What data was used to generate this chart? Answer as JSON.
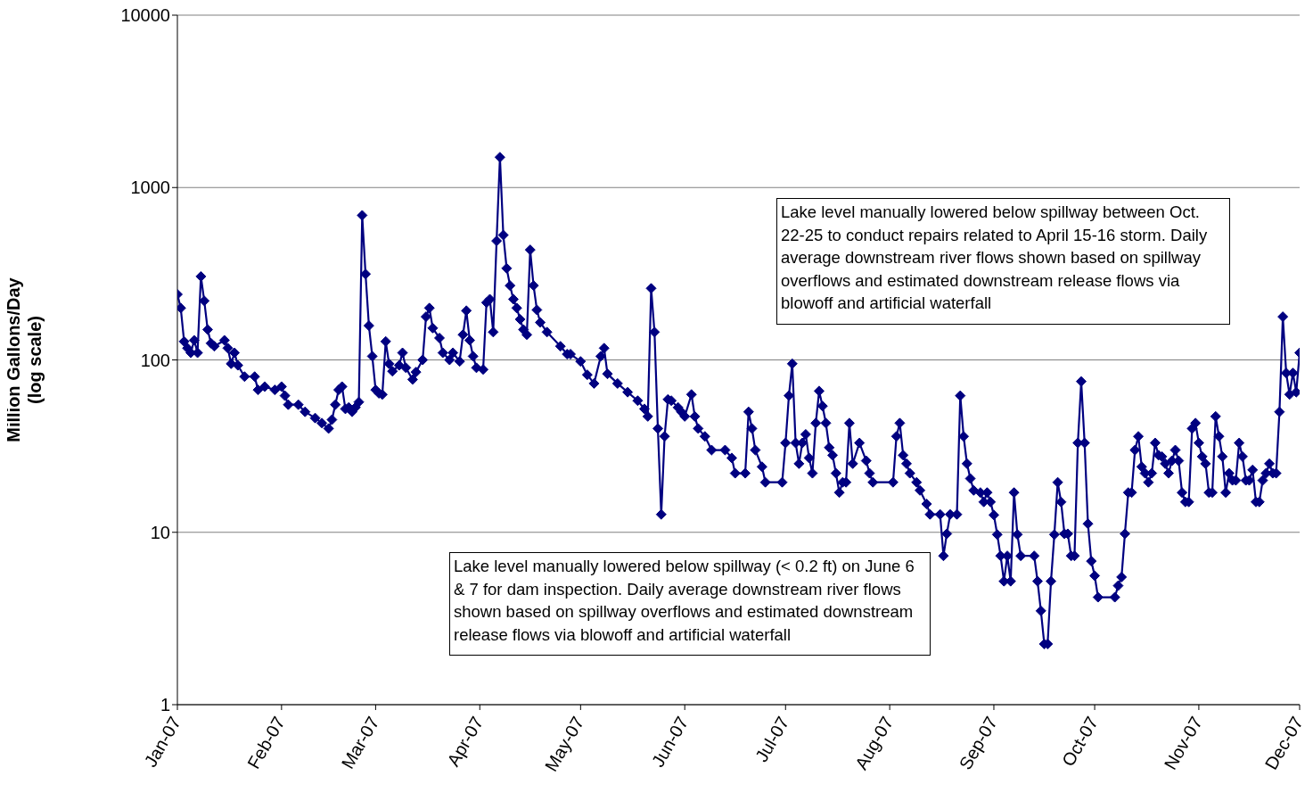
{
  "chart_data": {
    "type": "line",
    "ylabel": "Million Gallons/Day\n(log scale)",
    "log": true,
    "grid": "y",
    "marker": "diamond",
    "line_style": "solid",
    "xlim": [
      "2007-01-01",
      "2007-12-01"
    ],
    "xticks": [
      {
        "value": "2007-01-01",
        "label": "Jan-07"
      },
      {
        "value": "2007-02-01",
        "label": "Feb-07"
      },
      {
        "value": "2007-03-01",
        "label": "Mar-07"
      },
      {
        "value": "2007-04-01",
        "label": "Apr-07"
      },
      {
        "value": "2007-05-01",
        "label": "May-07"
      },
      {
        "value": "2007-06-01",
        "label": "Jun-07"
      },
      {
        "value": "2007-07-01",
        "label": "Jul-07"
      },
      {
        "value": "2007-08-01",
        "label": "Aug-07"
      },
      {
        "value": "2007-09-01",
        "label": "Sep-07"
      },
      {
        "value": "2007-10-01",
        "label": "Oct-07"
      },
      {
        "value": "2007-11-01",
        "label": "Nov-07"
      },
      {
        "value": "2007-12-01",
        "label": "Dec-07"
      }
    ],
    "ylim": [
      1,
      10000
    ],
    "yticks": [
      1,
      10,
      100,
      1000,
      10000
    ],
    "annotations": [
      "Lake level manually lowered below spillway between Oct. 22-25 to conduct repairs related to April 15-16 storm.  Daily average downstream river flows shown based on spillway overflows and estimated downstream release flows via blowoff and artificial waterfall",
      "Lake level manually lowered below spillway (< 0.2 ft) on June 6 & 7 for dam inspection.  Daily average downstream river flows shown based on spillway overflows and estimated downstream release flows via blowoff and artificial waterfall"
    ],
    "series": [
      {
        "color": "#000080",
        "x": [
          "2007-01-01",
          "2007-01-02",
          "2007-01-03",
          "2007-01-04",
          "2007-01-05",
          "2007-01-06",
          "2007-01-07",
          "2007-01-08",
          "2007-01-09",
          "2007-01-10",
          "2007-01-11",
          "2007-01-12",
          "2007-01-15",
          "2007-01-16",
          "2007-01-17",
          "2007-01-18",
          "2007-01-19",
          "2007-01-21",
          "2007-01-24",
          "2007-01-25",
          "2007-01-27",
          "2007-01-30",
          "2007-02-01",
          "2007-02-02",
          "2007-02-03",
          "2007-02-06",
          "2007-02-08",
          "2007-02-11",
          "2007-02-13",
          "2007-02-15",
          "2007-02-16",
          "2007-02-17",
          "2007-02-18",
          "2007-02-19",
          "2007-02-20",
          "2007-02-21",
          "2007-02-22",
          "2007-02-23",
          "2007-02-24",
          "2007-02-25",
          "2007-02-26",
          "2007-02-27",
          "2007-02-28",
          "2007-03-01",
          "2007-03-02",
          "2007-03-03",
          "2007-03-04",
          "2007-03-05",
          "2007-03-06",
          "2007-03-08",
          "2007-03-09",
          "2007-03-10",
          "2007-03-12",
          "2007-03-13",
          "2007-03-15",
          "2007-03-16",
          "2007-03-17",
          "2007-03-18",
          "2007-03-20",
          "2007-03-21",
          "2007-03-23",
          "2007-03-24",
          "2007-03-26",
          "2007-03-27",
          "2007-03-28",
          "2007-03-29",
          "2007-03-30",
          "2007-03-31",
          "2007-04-02",
          "2007-04-03",
          "2007-04-04",
          "2007-04-05",
          "2007-04-06",
          "2007-04-07",
          "2007-04-08",
          "2007-04-09",
          "2007-04-10",
          "2007-04-11",
          "2007-04-12",
          "2007-04-13",
          "2007-04-14",
          "2007-04-15",
          "2007-04-16",
          "2007-04-17",
          "2007-04-18",
          "2007-04-19",
          "2007-04-21",
          "2007-04-25",
          "2007-04-27",
          "2007-04-28",
          "2007-05-01",
          "2007-05-03",
          "2007-05-05",
          "2007-05-07",
          "2007-05-08",
          "2007-05-09",
          "2007-05-12",
          "2007-05-15",
          "2007-05-18",
          "2007-05-20",
          "2007-05-21",
          "2007-05-22",
          "2007-05-23",
          "2007-05-24",
          "2007-05-25",
          "2007-05-26",
          "2007-05-27",
          "2007-05-28",
          "2007-05-30",
          "2007-05-31",
          "2007-06-01",
          "2007-06-03",
          "2007-06-04",
          "2007-06-05",
          "2007-06-07",
          "2007-06-09",
          "2007-06-13",
          "2007-06-15",
          "2007-06-16",
          "2007-06-19",
          "2007-06-20",
          "2007-06-21",
          "2007-06-22",
          "2007-06-24",
          "2007-06-25",
          "2007-06-30",
          "2007-07-01",
          "2007-07-02",
          "2007-07-03",
          "2007-07-04",
          "2007-07-05",
          "2007-07-06",
          "2007-07-07",
          "2007-07-08",
          "2007-07-09",
          "2007-07-10",
          "2007-07-11",
          "2007-07-12",
          "2007-07-13",
          "2007-07-14",
          "2007-07-15",
          "2007-07-16",
          "2007-07-17",
          "2007-07-18",
          "2007-07-19",
          "2007-07-20",
          "2007-07-21",
          "2007-07-23",
          "2007-07-25",
          "2007-07-26",
          "2007-07-27",
          "2007-08-02",
          "2007-08-03",
          "2007-08-04",
          "2007-08-05",
          "2007-08-06",
          "2007-08-07",
          "2007-08-09",
          "2007-08-10",
          "2007-08-12",
          "2007-08-13",
          "2007-08-16",
          "2007-08-17",
          "2007-08-18",
          "2007-08-19",
          "2007-08-21",
          "2007-08-22",
          "2007-08-23",
          "2007-08-24",
          "2007-08-25",
          "2007-08-26",
          "2007-08-28",
          "2007-08-29",
          "2007-08-30",
          "2007-08-31",
          "2007-09-01",
          "2007-09-02",
          "2007-09-03",
          "2007-09-04",
          "2007-09-05",
          "2007-09-06",
          "2007-09-07",
          "2007-09-08",
          "2007-09-09",
          "2007-09-13",
          "2007-09-14",
          "2007-09-15",
          "2007-09-16",
          "2007-09-17",
          "2007-09-18",
          "2007-09-19",
          "2007-09-20",
          "2007-09-21",
          "2007-09-22",
          "2007-09-23",
          "2007-09-24",
          "2007-09-25",
          "2007-09-26",
          "2007-09-27",
          "2007-09-28",
          "2007-09-29",
          "2007-09-30",
          "2007-10-01",
          "2007-10-02",
          "2007-10-07",
          "2007-10-08",
          "2007-10-09",
          "2007-10-10",
          "2007-10-11",
          "2007-10-12",
          "2007-10-13",
          "2007-10-14",
          "2007-10-15",
          "2007-10-16",
          "2007-10-17",
          "2007-10-18",
          "2007-10-19",
          "2007-10-20",
          "2007-10-21",
          "2007-10-22",
          "2007-10-23",
          "2007-10-24",
          "2007-10-25",
          "2007-10-26",
          "2007-10-27",
          "2007-10-28",
          "2007-10-29",
          "2007-10-30",
          "2007-10-31",
          "2007-11-01",
          "2007-11-02",
          "2007-11-03",
          "2007-11-04",
          "2007-11-05",
          "2007-11-06",
          "2007-11-07",
          "2007-11-08",
          "2007-11-09",
          "2007-11-10",
          "2007-11-11",
          "2007-11-12",
          "2007-11-13",
          "2007-11-14",
          "2007-11-15",
          "2007-11-16",
          "2007-11-17",
          "2007-11-18",
          "2007-11-19",
          "2007-11-20",
          "2007-11-21",
          "2007-11-22",
          "2007-11-23",
          "2007-11-24",
          "2007-11-25",
          "2007-11-26",
          "2007-11-27",
          "2007-11-28",
          "2007-11-29",
          "2007-11-30",
          "2007-12-01"
        ],
        "values": [
          240,
          200,
          128,
          117,
          110,
          130,
          110,
          305,
          220,
          150,
          125,
          120,
          130,
          117,
          95,
          110,
          93,
          80,
          80,
          67,
          70,
          67,
          70,
          62,
          55,
          55,
          50,
          46,
          43,
          40,
          45,
          55,
          67,
          70,
          52,
          53,
          50,
          53,
          57,
          690,
          315,
          158,
          105,
          67,
          64,
          63,
          128,
          95,
          86,
          93,
          110,
          90,
          77,
          85,
          100,
          178,
          200,
          153,
          134,
          110,
          100,
          110,
          98,
          140,
          193,
          130,
          105,
          90,
          88,
          215,
          225,
          145,
          490,
          1500,
          530,
          340,
          270,
          225,
          200,
          172,
          150,
          140,
          435,
          270,
          195,
          165,
          145,
          120,
          108,
          108,
          98,
          82,
          73,
          105,
          117,
          83,
          73,
          65,
          58,
          52,
          47,
          260,
          145,
          40,
          12.7,
          36,
          59,
          58,
          53,
          50,
          47,
          63,
          47,
          40,
          36,
          30,
          30,
          27,
          22,
          22,
          50,
          40,
          30,
          24,
          19.5,
          19.5,
          33,
          62,
          95,
          33,
          25,
          33,
          37,
          27,
          22,
          43,
          66,
          54,
          43,
          31,
          28,
          22,
          17,
          19.5,
          19.5,
          43,
          25,
          33,
          26,
          22,
          19.5,
          19.5,
          36,
          43,
          28,
          25,
          22,
          19.5,
          17.5,
          14.6,
          12.7,
          12.7,
          7.3,
          9.8,
          12.7,
          12.7,
          62,
          36,
          25,
          20.5,
          17.5,
          17,
          15,
          17,
          15,
          12.6,
          9.7,
          7.3,
          5.2,
          7.3,
          5.2,
          17,
          9.7,
          7.3,
          7.3,
          5.2,
          3.5,
          2.25,
          2.25,
          5.2,
          9.7,
          19.5,
          15,
          9.8,
          9.8,
          7.3,
          7.3,
          33,
          75,
          33,
          11.2,
          6.8,
          5.6,
          4.2,
          4.2,
          4.9,
          5.5,
          9.8,
          17,
          17,
          30,
          36,
          24,
          22,
          19.5,
          22,
          33,
          28,
          27.5,
          25,
          22,
          26,
          30,
          26,
          17,
          15,
          15,
          40,
          43,
          33,
          27.5,
          25,
          17,
          17,
          47,
          36,
          27.5,
          17,
          22,
          20,
          20,
          33,
          27.5,
          20,
          20,
          23,
          15,
          15,
          20,
          22,
          25,
          22,
          22,
          50,
          178,
          84,
          63,
          84,
          65,
          110
        ]
      }
    ]
  }
}
